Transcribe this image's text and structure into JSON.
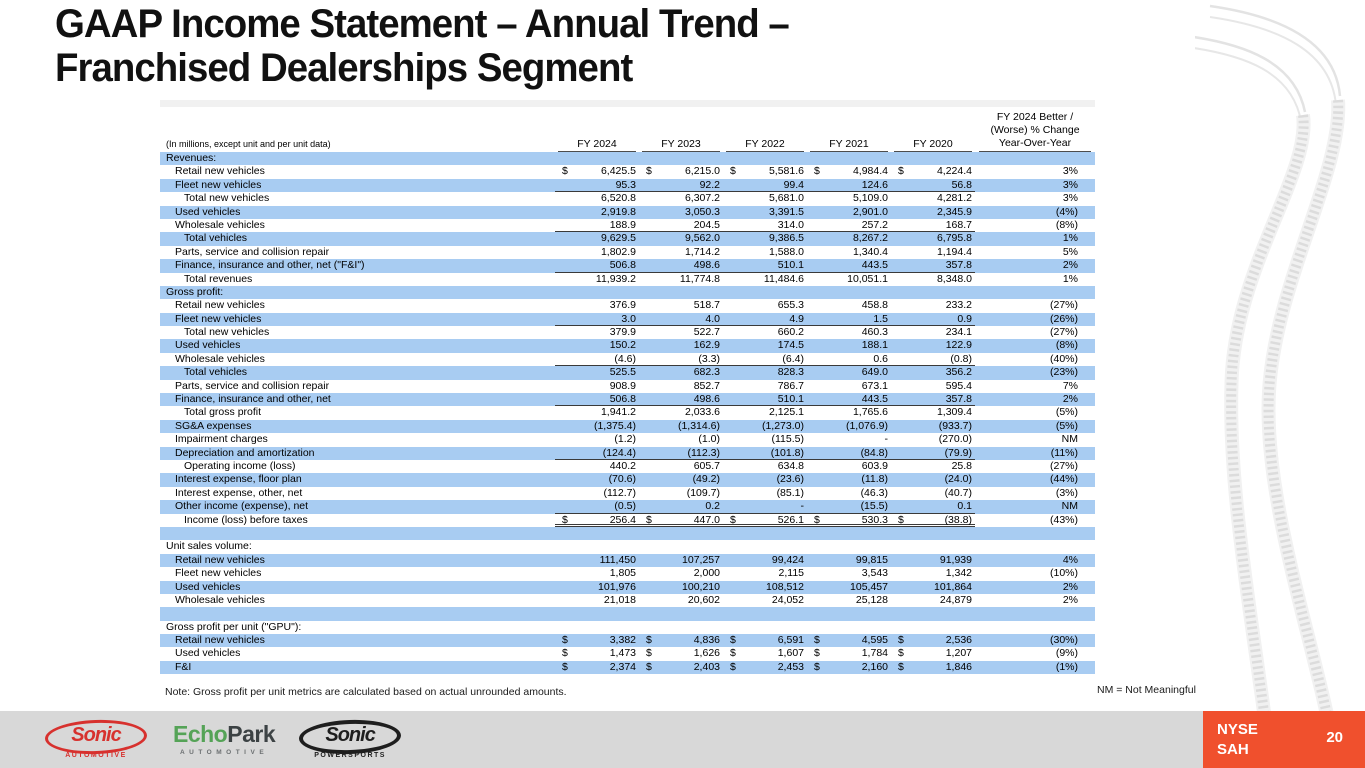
{
  "slide": {
    "title_line1": "GAAP Income Statement – Annual Trend –",
    "title_line2": "Franchised Dealerships Segment",
    "note": "Note: Gross profit per unit metrics are calculated based on actual unrounded amounts.",
    "nm_note": "NM = Not Meaningful"
  },
  "table": {
    "units_label": "(In millions, except unit and per unit data)",
    "col_headers": [
      "FY 2024",
      "FY 2023",
      "FY 2022",
      "FY 2021",
      "FY 2020"
    ],
    "change_header": [
      "FY 2024 Better /",
      "(Worse) % Change",
      "Year-Over-Year"
    ],
    "rows": [
      {
        "label": "Revenues:",
        "type": "section",
        "shade": true,
        "indent": 0
      },
      {
        "label": "Retail new vehicles",
        "shade": false,
        "indent": 1,
        "dollar": true,
        "values": [
          "6,425.5",
          "6,215.0",
          "5,581.6",
          "4,984.4",
          "4,224.4"
        ],
        "change": "3%"
      },
      {
        "label": "Fleet new vehicles",
        "shade": true,
        "indent": 1,
        "values": [
          "95.3",
          "92.2",
          "99.4",
          "124.6",
          "56.8"
        ],
        "change": "3%",
        "underline": "single"
      },
      {
        "label": "Total new vehicles",
        "shade": false,
        "indent": 2,
        "values": [
          "6,520.8",
          "6,307.2",
          "5,681.0",
          "5,109.0",
          "4,281.2"
        ],
        "change": "3%"
      },
      {
        "label": "Used vehicles",
        "shade": true,
        "indent": 1,
        "values": [
          "2,919.8",
          "3,050.3",
          "3,391.5",
          "2,901.0",
          "2,345.9"
        ],
        "change": "(4%)"
      },
      {
        "label": "Wholesale vehicles",
        "shade": false,
        "indent": 1,
        "values": [
          "188.9",
          "204.5",
          "314.0",
          "257.2",
          "168.7"
        ],
        "change": "(8%)",
        "underline": "single"
      },
      {
        "label": "Total vehicles",
        "shade": true,
        "indent": 2,
        "values": [
          "9,629.5",
          "9,562.0",
          "9,386.5",
          "8,267.2",
          "6,795.8"
        ],
        "change": "1%"
      },
      {
        "label": "Parts, service and collision repair",
        "shade": false,
        "indent": 1,
        "values": [
          "1,802.9",
          "1,714.2",
          "1,588.0",
          "1,340.4",
          "1,194.4"
        ],
        "change": "5%"
      },
      {
        "label": "Finance, insurance and other, net (\"F&I\")",
        "shade": true,
        "indent": 1,
        "values": [
          "506.8",
          "498.6",
          "510.1",
          "443.5",
          "357.8"
        ],
        "change": "2%",
        "underline": "single"
      },
      {
        "label": "Total revenues",
        "shade": false,
        "indent": 2,
        "values": [
          "11,939.2",
          "11,774.8",
          "11,484.6",
          "10,051.1",
          "8,348.0"
        ],
        "change": "1%"
      },
      {
        "label": "Gross profit:",
        "type": "section",
        "shade": true,
        "indent": 0
      },
      {
        "label": "Retail new vehicles",
        "shade": false,
        "indent": 1,
        "values": [
          "376.9",
          "518.7",
          "655.3",
          "458.8",
          "233.2"
        ],
        "change": "(27%)"
      },
      {
        "label": "Fleet new vehicles",
        "shade": true,
        "indent": 1,
        "values": [
          "3.0",
          "4.0",
          "4.9",
          "1.5",
          "0.9"
        ],
        "change": "(26%)",
        "underline": "single"
      },
      {
        "label": "Total new vehicles",
        "shade": false,
        "indent": 2,
        "values": [
          "379.9",
          "522.7",
          "660.2",
          "460.3",
          "234.1"
        ],
        "change": "(27%)"
      },
      {
        "label": "Used vehicles",
        "shade": true,
        "indent": 1,
        "values": [
          "150.2",
          "162.9",
          "174.5",
          "188.1",
          "122.9"
        ],
        "change": "(8%)"
      },
      {
        "label": "Wholesale vehicles",
        "shade": false,
        "indent": 1,
        "values": [
          "(4.6)",
          "(3.3)",
          "(6.4)",
          "0.6",
          "(0.8)"
        ],
        "change": "(40%)",
        "underline": "single"
      },
      {
        "label": "Total vehicles",
        "shade": true,
        "indent": 2,
        "values": [
          "525.5",
          "682.3",
          "828.3",
          "649.0",
          "356.2"
        ],
        "change": "(23%)"
      },
      {
        "label": "Parts, service and collision repair",
        "shade": false,
        "indent": 1,
        "values": [
          "908.9",
          "852.7",
          "786.7",
          "673.1",
          "595.4"
        ],
        "change": "7%"
      },
      {
        "label": "Finance, insurance and other, net",
        "shade": true,
        "indent": 1,
        "values": [
          "506.8",
          "498.6",
          "510.1",
          "443.5",
          "357.8"
        ],
        "change": "2%",
        "underline": "single"
      },
      {
        "label": "Total gross profit",
        "shade": false,
        "indent": 2,
        "values": [
          "1,941.2",
          "2,033.6",
          "2,125.1",
          "1,765.6",
          "1,309.4"
        ],
        "change": "(5%)"
      },
      {
        "label": "SG&A expenses",
        "shade": true,
        "indent": 1,
        "values": [
          "(1,375.4)",
          "(1,314.6)",
          "(1,273.0)",
          "(1,076.9)",
          "(933.7)"
        ],
        "change": "(5%)"
      },
      {
        "label": "Impairment charges",
        "shade": false,
        "indent": 1,
        "values": [
          "(1.2)",
          "(1.0)",
          "(115.5)",
          "-",
          "(270.0)"
        ],
        "change": "NM"
      },
      {
        "label": "Depreciation and amortization",
        "shade": true,
        "indent": 1,
        "values": [
          "(124.4)",
          "(112.3)",
          "(101.8)",
          "(84.8)",
          "(79.9)"
        ],
        "change": "(11%)",
        "underline": "single"
      },
      {
        "label": "Operating income (loss)",
        "shade": false,
        "indent": 2,
        "values": [
          "440.2",
          "605.7",
          "634.8",
          "603.9",
          "25.8"
        ],
        "change": "(27%)"
      },
      {
        "label": "Interest expense, floor plan",
        "shade": true,
        "indent": 1,
        "values": [
          "(70.6)",
          "(49.2)",
          "(23.6)",
          "(11.8)",
          "(24.0)"
        ],
        "change": "(44%)"
      },
      {
        "label": "Interest expense, other, net",
        "shade": false,
        "indent": 1,
        "values": [
          "(112.7)",
          "(109.7)",
          "(85.1)",
          "(46.3)",
          "(40.7)"
        ],
        "change": "(3%)"
      },
      {
        "label": "Other income (expense), net",
        "shade": true,
        "indent": 1,
        "values": [
          "(0.5)",
          "0.2",
          "-",
          "(15.5)",
          "0.1"
        ],
        "change": "NM",
        "underline": "single"
      },
      {
        "label": "Income (loss) before taxes",
        "shade": false,
        "indent": 2,
        "dollar": true,
        "values": [
          "256.4",
          "447.0",
          "526.1",
          "530.3",
          "(38.8)"
        ],
        "change": "(43%)",
        "underline": "double"
      },
      {
        "label": "",
        "type": "spacer",
        "shade": true,
        "indent": 0
      },
      {
        "label": "Unit sales volume:",
        "type": "section",
        "shade": false,
        "indent": 0
      },
      {
        "label": "Retail new vehicles",
        "shade": true,
        "indent": 1,
        "values": [
          "111,450",
          "107,257",
          "99,424",
          "99,815",
          "91,939"
        ],
        "change": "4%"
      },
      {
        "label": "Fleet new vehicles",
        "shade": false,
        "indent": 1,
        "values": [
          "1,805",
          "2,000",
          "2,115",
          "3,543",
          "1,342"
        ],
        "change": "(10%)"
      },
      {
        "label": "Used vehicles",
        "shade": true,
        "indent": 1,
        "values": [
          "101,976",
          "100,210",
          "108,512",
          "105,457",
          "101,864"
        ],
        "change": "2%"
      },
      {
        "label": "Wholesale vehicles",
        "shade": false,
        "indent": 1,
        "values": [
          "21,018",
          "20,602",
          "24,052",
          "25,128",
          "24,879"
        ],
        "change": "2%"
      },
      {
        "label": "",
        "type": "spacer",
        "shade": true,
        "indent": 0
      },
      {
        "label": "Gross profit per unit (\"GPU\"):",
        "type": "section",
        "shade": false,
        "indent": 0
      },
      {
        "label": "Retail new vehicles",
        "shade": true,
        "indent": 1,
        "dollar": true,
        "values": [
          "3,382",
          "4,836",
          "6,591",
          "4,595",
          "2,536"
        ],
        "change": "(30%)"
      },
      {
        "label": "Used vehicles",
        "shade": false,
        "indent": 1,
        "dollar": true,
        "values": [
          "1,473",
          "1,626",
          "1,607",
          "1,784",
          "1,207"
        ],
        "change": "(9%)"
      },
      {
        "label": "F&I",
        "shade": true,
        "indent": 1,
        "dollar": true,
        "values": [
          "2,374",
          "2,403",
          "2,453",
          "2,160",
          "1,846"
        ],
        "change": "(1%)"
      }
    ]
  },
  "footer": {
    "logos": [
      {
        "id": "sonic-automotive",
        "main": "Sonic",
        "sub": "Automotive"
      },
      {
        "id": "echopark",
        "main_green": "Echo",
        "main_dark": "Park",
        "sub": "AUTOMOTIVE"
      },
      {
        "id": "sonic-powersports",
        "main": "Sonic",
        "sub": "Powersports"
      }
    ],
    "ticker_line1": "NYSE",
    "ticker_line2": "SAH",
    "page_number": "20"
  },
  "colors": {
    "row_highlight": "#A8CCF2",
    "footer_bar": "#D8D8D8",
    "ticker_box": "#F0502D",
    "sonic_red": "#D7312E",
    "echopark_green": "#55A357",
    "title_text": "#111111"
  }
}
